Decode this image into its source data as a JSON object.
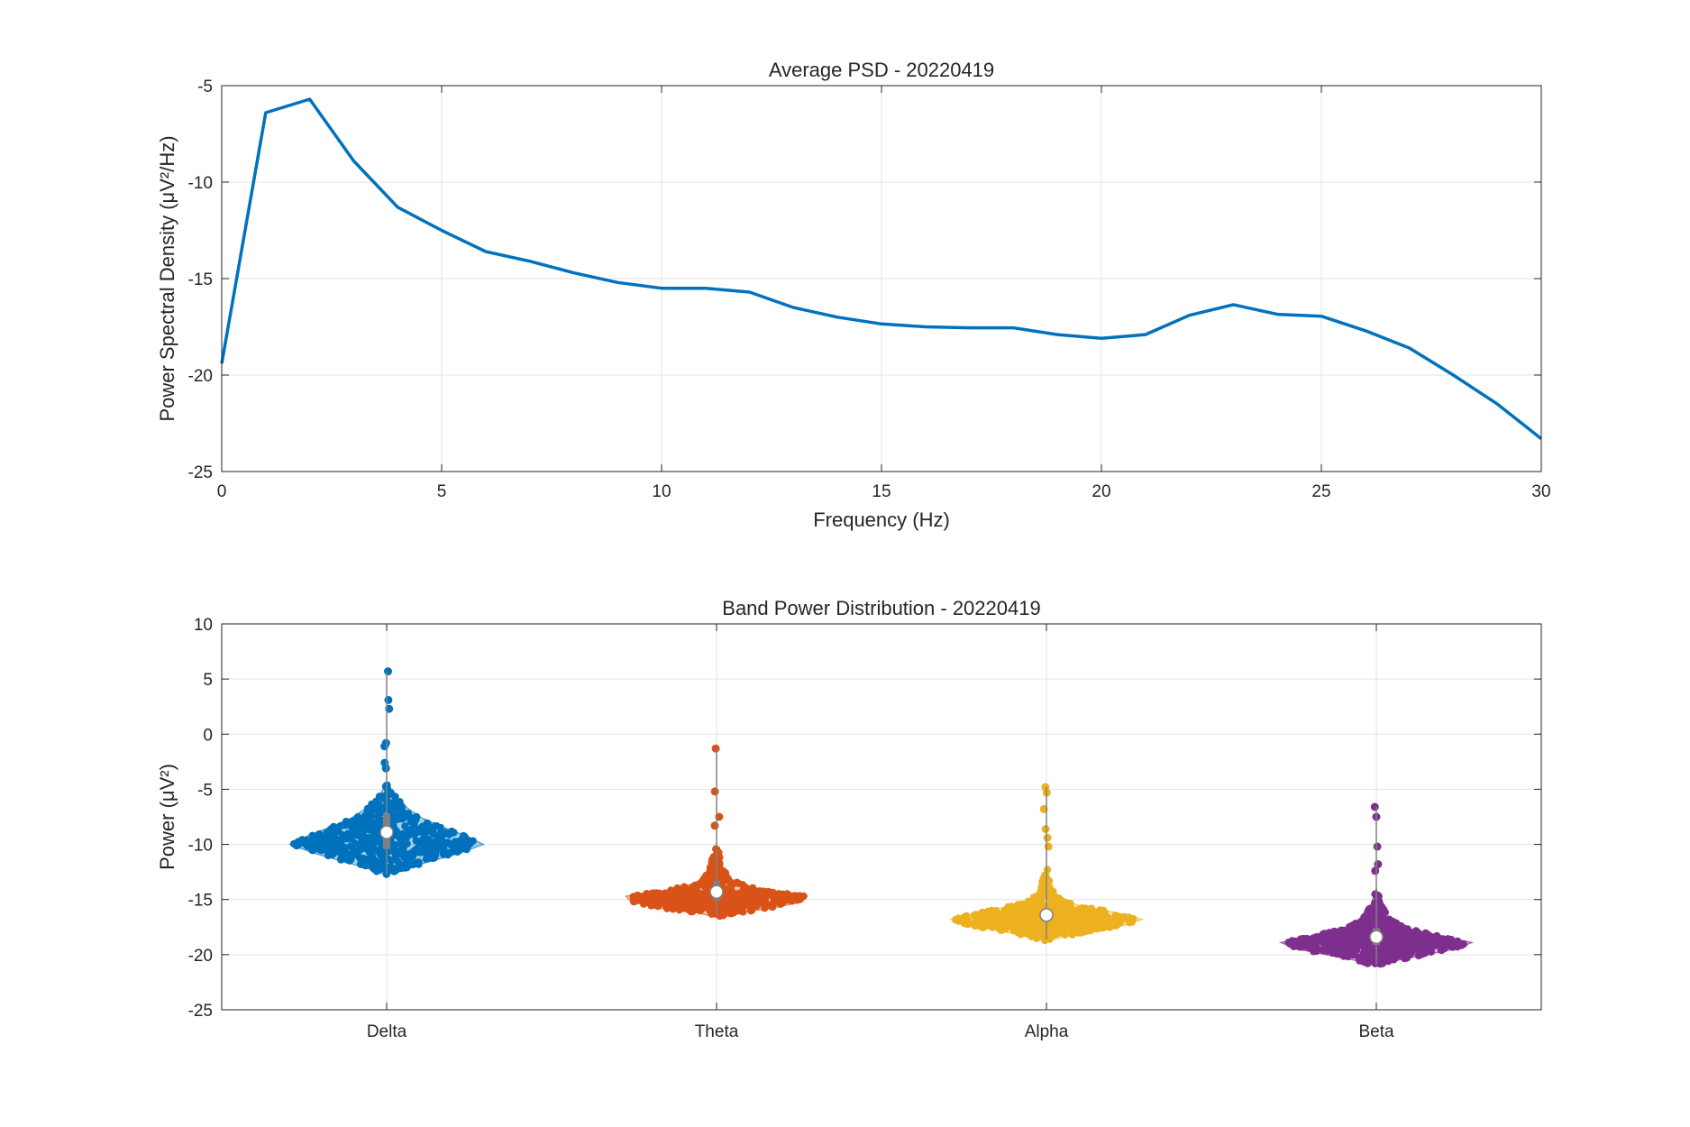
{
  "chart_data": [
    {
      "type": "line",
      "title": "Average PSD - 20220419",
      "xlabel": "Frequency (Hz)",
      "ylabel": "Power Spectral Density (μV²/Hz)",
      "xlim": [
        0,
        30
      ],
      "ylim": [
        -25,
        -5
      ],
      "xticks": [
        0,
        5,
        10,
        15,
        20,
        25,
        30
      ],
      "yticks": [
        -25,
        -20,
        -15,
        -10,
        -5
      ],
      "grid": true,
      "line_color": "#0072BD",
      "series": [
        {
          "x": [
            0,
            1,
            2,
            3,
            4,
            5,
            6,
            7,
            8,
            9,
            10,
            11,
            12,
            13,
            14,
            15,
            16,
            17,
            18,
            19,
            20,
            21,
            22,
            23,
            24,
            25,
            26,
            27,
            28,
            29,
            30
          ],
          "values": [
            -19.4,
            -6.4,
            -5.7,
            -8.9,
            -11.3,
            -12.5,
            -13.6,
            -14.1,
            -14.7,
            -15.2,
            -15.5,
            -15.5,
            -15.7,
            -16.5,
            -17.0,
            -17.35,
            -17.5,
            -17.55,
            -17.55,
            -17.9,
            -18.1,
            -17.9,
            -16.9,
            -16.35,
            -16.85,
            -16.95,
            -17.7,
            -18.6,
            -20.0,
            -21.5,
            -23.3
          ]
        }
      ]
    },
    {
      "type": "violin",
      "title": "Band Power Distribution - 20220419",
      "xlabel": "",
      "ylabel": "Power (μV²)",
      "ylim": [
        -25,
        10
      ],
      "yticks": [
        -25,
        -20,
        -15,
        -10,
        -5,
        0,
        5,
        10
      ],
      "grid": true,
      "categories": [
        "Delta",
        "Theta",
        "Alpha",
        "Beta"
      ],
      "series": [
        {
          "category": "Delta",
          "color": "#0072BD",
          "median": -8.9,
          "q1": -10.4,
          "q3": -7.2,
          "whisker_low": -12.7,
          "whisker_high": 5.7,
          "outliers": [
            5.7,
            3.1,
            2.3,
            -0.8,
            -1.1,
            -2.6,
            -3.1
          ],
          "profile": [
            [
              -12.8,
              0.0
            ],
            [
              -12.2,
              0.18
            ],
            [
              -11.5,
              0.45
            ],
            [
              -10.8,
              0.72
            ],
            [
              -10.0,
              0.96
            ],
            [
              -9.2,
              0.78
            ],
            [
              -8.4,
              0.55
            ],
            [
              -7.6,
              0.35
            ],
            [
              -6.8,
              0.22
            ],
            [
              -6.0,
              0.12
            ],
            [
              -5.2,
              0.05
            ],
            [
              -4.5,
              0.0
            ]
          ]
        },
        {
          "category": "Theta",
          "color": "#D95319",
          "median": -14.3,
          "q1": -15.1,
          "q3": -13.3,
          "whisker_low": -16.4,
          "whisker_high": -1.3,
          "outliers": [
            -1.3,
            -5.2,
            -7.5,
            -8.3
          ],
          "profile": [
            [
              -16.6,
              0.0
            ],
            [
              -16.2,
              0.2
            ],
            [
              -15.8,
              0.55
            ],
            [
              -15.2,
              0.85
            ],
            [
              -14.7,
              0.9
            ],
            [
              -14.2,
              0.5
            ],
            [
              -13.6,
              0.25
            ],
            [
              -13.0,
              0.12
            ],
            [
              -12.2,
              0.07
            ],
            [
              -11.2,
              0.04
            ],
            [
              -10.0,
              0.0
            ]
          ]
        },
        {
          "category": "Alpha",
          "color": "#EDB120",
          "median": -16.4,
          "q1": -17.0,
          "q3": -15.8,
          "whisker_low": -18.6,
          "whisker_high": -4.8,
          "outliers": [
            -4.8,
            -5.3,
            -6.8,
            -8.6,
            -9.4,
            -10.2
          ],
          "profile": [
            [
              -18.8,
              0.0
            ],
            [
              -18.3,
              0.2
            ],
            [
              -17.8,
              0.5
            ],
            [
              -17.3,
              0.8
            ],
            [
              -16.8,
              0.95
            ],
            [
              -16.2,
              0.7
            ],
            [
              -15.6,
              0.35
            ],
            [
              -15.0,
              0.15
            ],
            [
              -14.2,
              0.08
            ],
            [
              -13.2,
              0.04
            ],
            [
              -12.0,
              0.0
            ]
          ]
        },
        {
          "category": "Beta",
          "color": "#7E2F8E",
          "median": -18.4,
          "q1": -19.1,
          "q3": -17.6,
          "whisker_low": -20.9,
          "whisker_high": -6.6,
          "outliers": [
            -6.6,
            -7.5,
            -10.2,
            -11.8,
            -12.4
          ],
          "profile": [
            [
              -21.0,
              0.0
            ],
            [
              -20.5,
              0.22
            ],
            [
              -20.0,
              0.5
            ],
            [
              -19.5,
              0.78
            ],
            [
              -18.9,
              0.95
            ],
            [
              -18.3,
              0.65
            ],
            [
              -17.6,
              0.3
            ],
            [
              -16.8,
              0.14
            ],
            [
              -15.8,
              0.07
            ],
            [
              -14.8,
              0.03
            ],
            [
              -14.0,
              0.0
            ]
          ]
        }
      ]
    }
  ]
}
